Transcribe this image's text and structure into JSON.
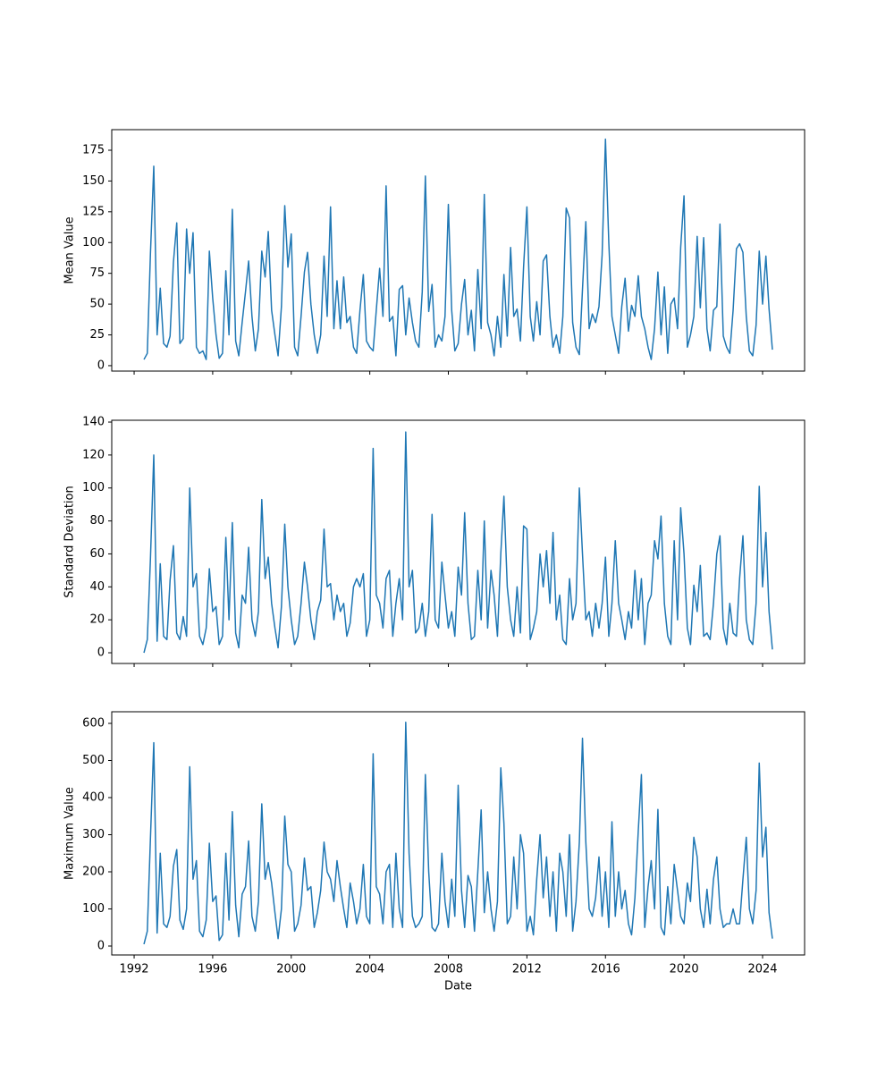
{
  "chart_data": {
    "type": "line",
    "xlabel": "Date",
    "x": [
      1992.5,
      1992.67,
      1992.83,
      1993,
      1993.17,
      1993.33,
      1993.5,
      1993.67,
      1993.83,
      1994,
      1994.17,
      1994.33,
      1994.5,
      1994.67,
      1994.83,
      1995,
      1995.17,
      1995.33,
      1995.5,
      1995.67,
      1995.83,
      1996,
      1996.17,
      1996.33,
      1996.5,
      1996.67,
      1996.83,
      1997,
      1997.17,
      1997.33,
      1997.5,
      1997.67,
      1997.83,
      1998,
      1998.17,
      1998.33,
      1998.5,
      1998.67,
      1998.83,
      1999,
      1999.17,
      1999.33,
      1999.5,
      1999.67,
      1999.83,
      2000,
      2000.17,
      2000.33,
      2000.5,
      2000.67,
      2000.83,
      2001,
      2001.17,
      2001.33,
      2001.5,
      2001.67,
      2001.83,
      2002,
      2002.17,
      2002.33,
      2002.5,
      2002.67,
      2002.83,
      2003,
      2003.17,
      2003.33,
      2003.5,
      2003.67,
      2003.83,
      2004,
      2004.17,
      2004.33,
      2004.5,
      2004.67,
      2004.83,
      2005,
      2005.17,
      2005.33,
      2005.5,
      2005.67,
      2005.83,
      2006,
      2006.17,
      2006.33,
      2006.5,
      2006.67,
      2006.83,
      2007,
      2007.17,
      2007.33,
      2007.5,
      2007.67,
      2007.83,
      2008,
      2008.17,
      2008.33,
      2008.5,
      2008.67,
      2008.83,
      2009,
      2009.17,
      2009.33,
      2009.5,
      2009.67,
      2009.83,
      2010,
      2010.17,
      2010.33,
      2010.5,
      2010.67,
      2010.83,
      2011,
      2011.17,
      2011.33,
      2011.5,
      2011.67,
      2011.83,
      2012,
      2012.17,
      2012.33,
      2012.5,
      2012.67,
      2012.83,
      2013,
      2013.17,
      2013.33,
      2013.5,
      2013.67,
      2013.83,
      2014,
      2014.17,
      2014.33,
      2014.5,
      2014.67,
      2014.83,
      2015,
      2015.17,
      2015.33,
      2015.5,
      2015.67,
      2015.83,
      2016,
      2016.17,
      2016.33,
      2016.5,
      2016.67,
      2016.83,
      2017,
      2017.17,
      2017.33,
      2017.5,
      2017.67,
      2017.83,
      2018,
      2018.17,
      2018.33,
      2018.5,
      2018.67,
      2018.83,
      2019,
      2019.17,
      2019.33,
      2019.5,
      2019.67,
      2019.83,
      2020,
      2020.17,
      2020.33,
      2020.5,
      2020.67,
      2020.83,
      2021,
      2021.17,
      2021.33,
      2021.5,
      2021.67,
      2021.83,
      2022,
      2022.17,
      2022.33,
      2022.5,
      2022.67,
      2022.83,
      2023,
      2023.17,
      2023.33,
      2023.5,
      2023.67,
      2023.83,
      2024,
      2024.17,
      2024.33,
      2024.5
    ],
    "xlim": [
      1990.86,
      2026.14
    ],
    "xticks": [
      1992,
      1996,
      2000,
      2004,
      2008,
      2012,
      2016,
      2020,
      2024
    ],
    "panels": [
      {
        "ylabel": "Mean Value",
        "ylim": [
          -4.4,
          191.7
        ],
        "yticks": [
          0,
          25,
          50,
          75,
          100,
          125,
          150,
          175
        ],
        "series": [
          {
            "color": "#1f77b4",
            "values": [
              5,
              10,
              91,
              162,
              25,
              63,
              18,
              15,
              24,
              84,
              116,
              18,
              22,
              111,
              75,
              108,
              15,
              10,
              12,
              5,
              93,
              55,
              25,
              6,
              10,
              77,
              25,
              127,
              20,
              8,
              35,
              60,
              85,
              40,
              12,
              30,
              93,
              72,
              109,
              45,
              25,
              8,
              48,
              130,
              80,
              107,
              15,
              8,
              40,
              76,
              92,
              50,
              25,
              10,
              25,
              89,
              40,
              129,
              30,
              69,
              30,
              72,
              35,
              40,
              15,
              10,
              45,
              74,
              20,
              15,
              12,
              45,
              79,
              40,
              146,
              36,
              40,
              8,
              62,
              65,
              25,
              55,
              35,
              20,
              15,
              60,
              154,
              44,
              66,
              15,
              25,
              20,
              40,
              131,
              45,
              12,
              18,
              50,
              70,
              25,
              45,
              12,
              78,
              30,
              139,
              35,
              25,
              8,
              40,
              15,
              74,
              24,
              96,
              40,
              46,
              20,
              80,
              129,
              40,
              20,
              52,
              25,
              85,
              90,
              40,
              15,
              25,
              10,
              40,
              128,
              120,
              35,
              15,
              9,
              62,
              117,
              30,
              42,
              35,
              48,
              90,
              184,
              100,
              40,
              25,
              10,
              48,
              71,
              28,
              49,
              40,
              73,
              40,
              30,
              15,
              5,
              30,
              76,
              25,
              64,
              10,
              50,
              55,
              30,
              96,
              138,
              15,
              25,
              40,
              105,
              47,
              104,
              30,
              12,
              45,
              48,
              115,
              24,
              15,
              10,
              45,
              95,
              99,
              92,
              40,
              12,
              8,
              33,
              93,
              50,
              89,
              46,
              13
            ]
          }
        ]
      },
      {
        "ylabel": "Standard Deviation",
        "ylim": [
          -6.5,
          141.1
        ],
        "yticks": [
          0,
          20,
          40,
          60,
          80,
          100,
          120,
          140
        ],
        "series": [
          {
            "color": "#1f77b4",
            "values": [
              0,
              8,
              57,
              120,
              7,
              54,
              10,
              8,
              44,
              65,
              12,
              8,
              22,
              10,
              100,
              40,
              48,
              10,
              5,
              15,
              51,
              25,
              28,
              5,
              10,
              70,
              20,
              79,
              12,
              3,
              35,
              30,
              64,
              20,
              10,
              25,
              93,
              45,
              58,
              30,
              15,
              3,
              28,
              78,
              40,
              20,
              5,
              10,
              30,
              55,
              40,
              20,
              8,
              25,
              32,
              75,
              40,
              42,
              20,
              35,
              25,
              30,
              10,
              18,
              40,
              45,
              40,
              48,
              10,
              20,
              124,
              35,
              30,
              15,
              45,
              50,
              10,
              30,
              45,
              20,
              134,
              40,
              50,
              12,
              15,
              30,
              10,
              25,
              84,
              20,
              15,
              55,
              35,
              15,
              25,
              10,
              52,
              35,
              85,
              30,
              8,
              10,
              50,
              20,
              80,
              15,
              50,
              35,
              10,
              60,
              95,
              40,
              20,
              10,
              40,
              12,
              77,
              75,
              8,
              15,
              25,
              60,
              40,
              62,
              30,
              73,
              20,
              35,
              8,
              5,
              45,
              20,
              30,
              100,
              60,
              20,
              25,
              10,
              30,
              15,
              30,
              58,
              10,
              30,
              68,
              30,
              20,
              8,
              25,
              15,
              50,
              20,
              45,
              5,
              30,
              35,
              68,
              57,
              83,
              30,
              10,
              5,
              68,
              20,
              88,
              60,
              15,
              5,
              41,
              25,
              53,
              10,
              12,
              8,
              30,
              60,
              71,
              15,
              5,
              30,
              12,
              10,
              45,
              71,
              20,
              8,
              5,
              30,
              101,
              40,
              73,
              25,
              2
            ]
          }
        ]
      },
      {
        "ylabel": "Maximum Value",
        "ylim": [
          -24.1,
          631.3
        ],
        "yticks": [
          0,
          100,
          200,
          300,
          400,
          500,
          600
        ],
        "series": [
          {
            "color": "#1f77b4",
            "values": [
              5,
              40,
              290,
              548,
              35,
              250,
              60,
              50,
              80,
              215,
              260,
              70,
              45,
              100,
              483,
              180,
              230,
              40,
              25,
              70,
              277,
              120,
              135,
              15,
              30,
              250,
              70,
              362,
              110,
              25,
              140,
              160,
              283,
              80,
              40,
              120,
              383,
              180,
              225,
              170,
              90,
              20,
              100,
              350,
              220,
              200,
              40,
              60,
              110,
              237,
              150,
              160,
              50,
              90,
              150,
              280,
              200,
              180,
              120,
              230,
              160,
              100,
              50,
              170,
              120,
              60,
              100,
              220,
              80,
              60,
              518,
              160,
              140,
              60,
              200,
              220,
              50,
              250,
              100,
              50,
              603,
              250,
              80,
              50,
              60,
              80,
              462,
              200,
              50,
              40,
              60,
              250,
              120,
              50,
              180,
              80,
              433,
              150,
              50,
              190,
              160,
              40,
              200,
              367,
              90,
              200,
              100,
              40,
              120,
              480,
              330,
              60,
              80,
              240,
              100,
              300,
              250,
              40,
              80,
              30,
              180,
              300,
              130,
              240,
              80,
              200,
              40,
              250,
              200,
              80,
              300,
              40,
              120,
              280,
              560,
              280,
              100,
              80,
              130,
              240,
              80,
              200,
              50,
              335,
              80,
              200,
              100,
              150,
              60,
              30,
              130,
              310,
              462,
              50,
              160,
              230,
              100,
              368,
              50,
              30,
              160,
              60,
              220,
              150,
              80,
              60,
              170,
              120,
              293,
              240,
              100,
              50,
              153,
              60,
              180,
              240,
              100,
              50,
              60,
              60,
              100,
              60,
              60,
              180,
              293,
              100,
              60,
              150,
              493,
              240,
              320,
              90,
              20
            ]
          }
        ]
      }
    ]
  }
}
